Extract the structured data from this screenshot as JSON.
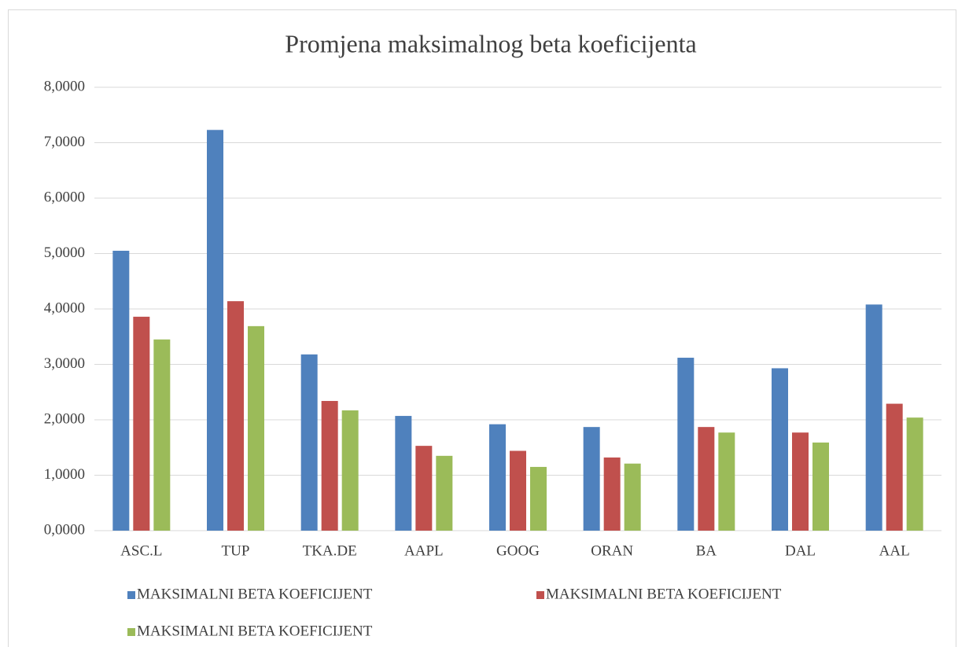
{
  "chart_data": {
    "type": "bar",
    "title": "Promjena maksimalnog beta koeficijenta",
    "categories": [
      "ASC.L",
      "TUP",
      "TKA.DE",
      "AAPL",
      "GOOG",
      "ORAN",
      "BA",
      "DAL",
      "AAL"
    ],
    "series": [
      {
        "name": "MAKSIMALNI BETA KOEFICIJENT",
        "color": "#4f81bd",
        "values": [
          5.05,
          7.23,
          3.18,
          2.07,
          1.92,
          1.87,
          3.12,
          2.93,
          4.08
        ]
      },
      {
        "name": "MAKSIMALNI BETA KOEFICIJENT",
        "color": "#c0504d",
        "values": [
          3.86,
          4.14,
          2.34,
          1.53,
          1.44,
          1.32,
          1.87,
          1.77,
          2.29
        ]
      },
      {
        "name": "MAKSIMALNI BETA KOEFICIJENT",
        "color": "#9bbb59",
        "values": [
          3.45,
          3.69,
          2.17,
          1.35,
          1.15,
          1.21,
          1.77,
          1.59,
          2.04
        ]
      }
    ],
    "ylim": [
      0,
      8
    ],
    "yticks": [
      {
        "value": 0,
        "label": "0,0000"
      },
      {
        "value": 1,
        "label": "1,0000"
      },
      {
        "value": 2,
        "label": "2,0000"
      },
      {
        "value": 3,
        "label": "3,0000"
      },
      {
        "value": 4,
        "label": "4,0000"
      },
      {
        "value": 5,
        "label": "5,0000"
      },
      {
        "value": 6,
        "label": "6,0000"
      },
      {
        "value": 7,
        "label": "7,0000"
      },
      {
        "value": 8,
        "label": "8,0000"
      }
    ],
    "grid": true,
    "legend": "bottom"
  }
}
